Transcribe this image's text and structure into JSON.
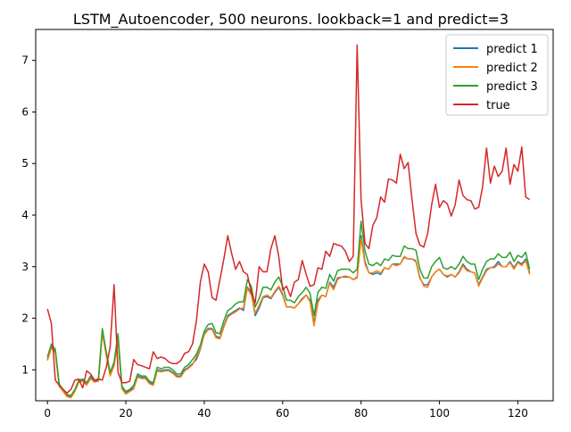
{
  "chart_data": {
    "type": "line",
    "title": "LSTM_Autoencoder, 500 neurons. lookback=1 and predict=3",
    "xlabel": "",
    "ylabel": "",
    "xlim": [
      -3,
      129
    ],
    "ylim": [
      0.4,
      7.6
    ],
    "xticks": [
      0,
      20,
      40,
      60,
      80,
      100,
      120
    ],
    "yticks": [
      1,
      2,
      3,
      4,
      5,
      6,
      7
    ],
    "grid": false,
    "legend_position": "top-right",
    "series": [
      {
        "name": "predict 1",
        "color": "#1f77b4",
        "values": [
          1.2,
          1.45,
          1.35,
          0.7,
          0.6,
          0.5,
          0.48,
          0.6,
          0.78,
          0.8,
          0.72,
          0.85,
          0.78,
          0.8,
          1.75,
          1.3,
          0.9,
          1.1,
          1.6,
          0.65,
          0.55,
          0.6,
          0.65,
          0.88,
          0.85,
          0.85,
          0.75,
          0.72,
          1.0,
          0.98,
          1.0,
          1.0,
          0.95,
          0.88,
          0.88,
          1.0,
          1.05,
          1.12,
          1.2,
          1.4,
          1.7,
          1.8,
          1.8,
          1.65,
          1.62,
          1.85,
          2.05,
          2.1,
          2.15,
          2.2,
          2.15,
          2.6,
          2.5,
          2.05,
          2.2,
          2.4,
          2.42,
          2.38,
          2.5,
          2.6,
          2.45,
          2.22,
          2.22,
          2.2,
          2.28,
          2.38,
          2.45,
          2.35,
          1.9,
          2.35,
          2.45,
          2.42,
          2.7,
          2.6,
          2.78,
          2.8,
          2.8,
          2.8,
          2.75,
          2.8,
          3.6,
          3.1,
          2.88,
          2.85,
          2.88,
          2.85,
          2.98,
          2.95,
          3.05,
          3.05,
          3.05,
          3.18,
          3.15,
          3.15,
          3.1,
          2.78,
          2.65,
          2.65,
          2.8,
          2.9,
          2.95,
          2.85,
          2.8,
          2.85,
          2.8,
          2.9,
          3.05,
          2.95,
          2.9,
          2.88,
          2.65,
          2.8,
          2.95,
          2.98,
          3.0,
          3.1,
          3.0,
          3.0,
          3.1,
          2.98,
          3.1,
          3.05,
          3.15,
          2.88
        ]
      },
      {
        "name": "predict 2",
        "color": "#ff7f0e",
        "values": [
          1.18,
          1.42,
          1.33,
          0.68,
          0.58,
          0.48,
          0.46,
          0.58,
          0.76,
          0.78,
          0.7,
          0.83,
          0.76,
          0.78,
          1.72,
          1.28,
          0.88,
          1.08,
          1.58,
          0.63,
          0.53,
          0.58,
          0.63,
          0.86,
          0.83,
          0.83,
          0.73,
          0.7,
          0.98,
          0.96,
          0.98,
          0.98,
          0.93,
          0.86,
          0.86,
          0.98,
          1.03,
          1.1,
          1.25,
          1.42,
          1.68,
          1.78,
          1.78,
          1.62,
          1.6,
          1.83,
          2.02,
          2.08,
          2.12,
          2.18,
          2.2,
          2.58,
          2.45,
          2.1,
          2.25,
          2.42,
          2.45,
          2.4,
          2.52,
          2.62,
          2.48,
          2.22,
          2.22,
          2.2,
          2.28,
          2.36,
          2.45,
          2.32,
          1.85,
          2.3,
          2.45,
          2.42,
          2.68,
          2.55,
          2.75,
          2.8,
          2.82,
          2.8,
          2.75,
          2.78,
          3.55,
          3.05,
          2.88,
          2.88,
          2.92,
          2.88,
          2.98,
          2.95,
          3.05,
          3.02,
          3.05,
          3.2,
          3.15,
          3.15,
          3.12,
          2.8,
          2.62,
          2.6,
          2.8,
          2.9,
          2.95,
          2.85,
          2.82,
          2.85,
          2.8,
          2.88,
          3.02,
          2.92,
          2.9,
          2.88,
          2.62,
          2.78,
          2.92,
          2.98,
          2.98,
          3.05,
          3.0,
          3.0,
          3.08,
          2.95,
          3.08,
          3.02,
          3.12,
          2.85
        ]
      },
      {
        "name": "predict 3",
        "color": "#2ca02c",
        "values": [
          1.25,
          1.5,
          1.4,
          0.72,
          0.62,
          0.52,
          0.5,
          0.62,
          0.8,
          0.82,
          0.75,
          0.88,
          0.8,
          0.82,
          1.8,
          1.35,
          0.95,
          1.15,
          1.7,
          0.68,
          0.58,
          0.62,
          0.7,
          0.92,
          0.88,
          0.88,
          0.78,
          0.75,
          1.05,
          1.02,
          1.05,
          1.05,
          1.0,
          0.92,
          0.92,
          1.05,
          1.1,
          1.2,
          1.3,
          1.48,
          1.75,
          1.88,
          1.9,
          1.72,
          1.7,
          1.95,
          2.15,
          2.2,
          2.28,
          2.32,
          2.32,
          2.75,
          2.62,
          2.22,
          2.38,
          2.6,
          2.6,
          2.55,
          2.7,
          2.8,
          2.62,
          2.35,
          2.35,
          2.3,
          2.42,
          2.5,
          2.6,
          2.48,
          2.05,
          2.5,
          2.6,
          2.58,
          2.85,
          2.72,
          2.92,
          2.95,
          2.95,
          2.95,
          2.88,
          2.95,
          3.88,
          3.3,
          3.05,
          3.02,
          3.08,
          3.02,
          3.15,
          3.12,
          3.22,
          3.2,
          3.2,
          3.4,
          3.35,
          3.35,
          3.32,
          2.95,
          2.78,
          2.78,
          3.0,
          3.1,
          3.18,
          2.98,
          2.95,
          3.0,
          2.95,
          3.05,
          3.2,
          3.1,
          3.05,
          3.05,
          2.75,
          2.95,
          3.1,
          3.15,
          3.15,
          3.25,
          3.18,
          3.18,
          3.28,
          3.1,
          3.22,
          3.18,
          3.28,
          2.95
        ]
      },
      {
        "name": "true",
        "color": "#d62728",
        "values": [
          2.18,
          1.9,
          0.8,
          0.7,
          0.62,
          0.55,
          0.62,
          0.8,
          0.82,
          0.65,
          0.98,
          0.92,
          0.8,
          0.82,
          0.8,
          1.05,
          1.45,
          2.65,
          0.95,
          0.75,
          0.75,
          0.78,
          1.2,
          1.1,
          1.08,
          1.05,
          1.02,
          1.35,
          1.22,
          1.25,
          1.22,
          1.15,
          1.12,
          1.12,
          1.18,
          1.32,
          1.35,
          1.5,
          1.95,
          2.7,
          3.05,
          2.9,
          2.4,
          2.35,
          2.75,
          3.15,
          3.6,
          3.25,
          2.95,
          3.1,
          2.9,
          2.85,
          2.5,
          2.3,
          3.0,
          2.9,
          2.9,
          3.35,
          3.6,
          3.2,
          2.55,
          2.62,
          2.42,
          2.7,
          2.75,
          3.12,
          2.85,
          2.62,
          2.65,
          2.98,
          2.95,
          3.3,
          3.2,
          3.45,
          3.42,
          3.4,
          3.3,
          3.1,
          3.2,
          7.3,
          4.3,
          3.45,
          3.35,
          3.8,
          3.95,
          4.35,
          4.25,
          4.7,
          4.68,
          4.62,
          5.18,
          4.9,
          5.02,
          4.3,
          3.65,
          3.42,
          3.38,
          3.65,
          4.2,
          4.6,
          4.15,
          4.28,
          4.22,
          3.98,
          4.2,
          4.68,
          4.38,
          4.3,
          4.28,
          4.12,
          4.15,
          4.55,
          5.3,
          4.62,
          4.95,
          4.75,
          4.85,
          5.3,
          4.6,
          4.98,
          4.85,
          5.32,
          4.35,
          4.3
        ]
      }
    ]
  }
}
